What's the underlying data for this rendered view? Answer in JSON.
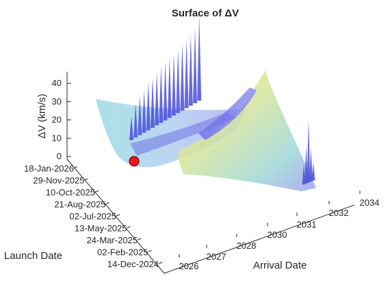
{
  "chart_data": {
    "type": "surface",
    "title": "Surface of ΔV",
    "xlabel": "Arrival Date",
    "ylabel": "Launch Date",
    "zlabel": "ΔV (km/s)",
    "x_ticks": [
      "2026",
      "2027",
      "2028",
      "2030",
      "2031",
      "2032",
      "2034"
    ],
    "y_ticks": [
      "14-Dec-2024",
      "02-Feb-2025",
      "24-Mar-2025",
      "13-May-2025",
      "02-Jul-2025",
      "21-Aug-2025",
      "10-Oct-2025",
      "29-Nov-2025",
      "18-Jan-2026"
    ],
    "z_ticks": [
      "0",
      "10",
      "20",
      "30",
      "40"
    ],
    "zlim": [
      0,
      45
    ],
    "colormap": "parula, semi-transparent",
    "minimum_marker": {
      "color": "#e31a1c",
      "value_kms": 2
    },
    "grid": false,
    "legend": "none"
  }
}
